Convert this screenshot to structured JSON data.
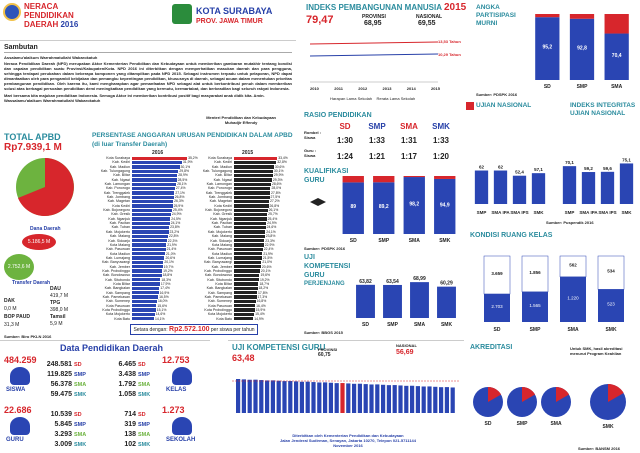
{
  "header": {
    "title_l1": "NERACA",
    "title_l2": "PENDIDIKAN",
    "title_l3": "DAERAH",
    "year": "2016",
    "city": "KOTA SURABAYA",
    "prov": "PROV. JAWA TIMUR"
  },
  "sambutan": {
    "heading": "Sambutan",
    "greeting": "Assalamu'alaikum Warrahmatullahi Wabarokatuh",
    "p1": "Neraca Pendidikan Daerah (NPD) merupakan Aktor Kementerian Pendidikan dan Kebudayaan untuk memberikan gambaran mutakhir tentang kondisi dan capaian pendidikan suatu Provinsi/Kabupaten/Kota. NPD 2016 ini diterbitkan dengan memperhatikan masukan daerah dan para pengguna, sehingga terdapat perubahan dalam beberapa komponen yang ditampilkan pada NPD 2015. Sebagai instrumen terpadu untuk pelaporan, NPD dapat dimanfaatkan oleh para pengambil kebijakan dan pemangku kepentingan pendidikan, khususnya di daerah, sebagai acuan dalam menentukan prioritas pembangunan pendidikan. Oleh karena itu, kami mengharapkan agar pemanfaatan NPD sebagai alat untuk berkontribusi penuh dalam memberikan solusi atas berbagai persoalan pendidikan demi meningkatkan pendidikan yang bermutu, bermartabat, dan berkeadilan bagi seluruh rakyat Indonesia.",
    "p2": "Mari bersama kita majukan pendidikan Indonesia. Semoga Aktor ini memberikan kontribusi positif bagi masyarakat anak didik kita. Amin. Wassalamu'alaikum Warrahmatullahi Wabarokatuh",
    "sign1": "Menteri Pendidikan dan Kebudayaan",
    "sign2": "Muhadjir Effendy"
  },
  "apbd": {
    "title": "TOTAL APBD",
    "total": "Rp7.939,1 M",
    "dana_daerah": "Dana Daerah",
    "dana_daerah_val": "5.186,5 M",
    "transfer_daerah": "Transfer Daerah",
    "transfer_val": "2.752,6 M",
    "items": [
      {
        "k": "DAU",
        "v": "419,7 M"
      },
      {
        "k": "DAK",
        "v": "0,0 M"
      },
      {
        "k": "TPG",
        "v": "398,0 M"
      },
      {
        "k": "BOP PAUD",
        "v": ""
      },
      {
        "k": "Tamsil",
        "v": "31,3 M"
      },
      {
        "k": "",
        "v": "5,9 M"
      }
    ],
    "source": "Sumber: Biro PKLN 2016"
  },
  "persentase": {
    "title": "PERSENTASE ANGGARAN URUSAN PENDIDIKAN DALAM APBD",
    "subtitle": "(di luar Transfer Daerah)",
    "year_2016": "2016",
    "year_2015": "2015",
    "footer_pre": "Setara dengan:",
    "footer_val": "Rp2.572.100",
    "footer_post": "per siswa per tahun"
  },
  "ipm": {
    "title": "INDEKS PEMBANGUNAN MANUSIA",
    "year": "2015",
    "value": "79,47",
    "prov_label": "PROVINSI",
    "prov_val": "68,95",
    "nas_label": "NASIONAL",
    "nas_val": "69,55",
    "line1": "13,53 Tahun",
    "line2": "10,29 Tahun",
    "years": [
      "2010",
      "2011",
      "2012",
      "2013",
      "2014",
      "2015"
    ],
    "legend1": "Harapan Lama Sekolah",
    "legend2": "Rerata Lama Sekolah"
  },
  "apm": {
    "title": "ANGKA PARTISIPASI MURNI",
    "categories": [
      "SD",
      "SMP",
      "SMA"
    ],
    "source": "Sumber: PDSPK 2016"
  },
  "rasio": {
    "title": "RASIO PENDIDIKAN",
    "rombel": "Rombel : Siswa",
    "guru": "Guru : Siswa",
    "cols": [
      "SD",
      "SMP",
      "SMA",
      "SMK"
    ],
    "rombel_vals": [
      "1:30",
      "1:33",
      "1:31",
      "1:33"
    ],
    "guru_vals": [
      "1:24",
      "1:21",
      "1:17",
      "1:20"
    ]
  },
  "ujian_nasional": {
    "title": "UJIAN NASIONAL",
    "source": "Sumber: Puspendik 2016"
  },
  "integritas": {
    "title": "INDEKS INTEGRITAS UJIAN NASIONAL"
  },
  "kualifikasi": {
    "title_l1": "KUALIFIKASI",
    "title_l2": "GURU",
    "source": "Sumber: PDSPK 2016"
  },
  "ukg": {
    "title_l1": "UJI",
    "title_l2": "KOMPETENSI",
    "title_l3": "GURU",
    "sub": "PERJENJANG",
    "source": "Sumber: BBGS 2015"
  },
  "kondisi": {
    "title": "KONDISI RUANG KELAS"
  },
  "data_pendidikan": {
    "title": "Data Pendidikan Daerah",
    "siswa_total": "484.259",
    "siswa_label": "SISWA",
    "siswa_rows": [
      {
        "v": "248.581",
        "k": "SD"
      },
      {
        "v": "119.825",
        "k": "SMP"
      },
      {
        "v": "56.378",
        "k": "SMA"
      },
      {
        "v": "59.475",
        "k": "SMK"
      }
    ],
    "guru_total": "22.686",
    "guru_label": "GURU",
    "guru_rows": [
      {
        "v": "10.539",
        "k": "SD"
      },
      {
        "v": "5.845",
        "k": "SMP"
      },
      {
        "v": "3.293",
        "k": "SMA"
      },
      {
        "v": "3.009",
        "k": "SMK"
      }
    ],
    "kelas_total": "12.753",
    "kelas_label": "KELAS",
    "kelas_rows": [
      {
        "v": "6.465",
        "k": "SD"
      },
      {
        "v": "3.438",
        "k": "SMP"
      },
      {
        "v": "1.792",
        "k": "SMA"
      },
      {
        "v": "1.058",
        "k": "SMK"
      }
    ],
    "sekolah_total": "1.273",
    "sekolah_label": "SEKOLAH",
    "sekolah_rows": [
      {
        "v": "714",
        "k": "SD"
      },
      {
        "v": "319",
        "k": "SMP"
      },
      {
        "v": "138",
        "k": "SMA"
      },
      {
        "v": "102",
        "k": "SMK"
      }
    ]
  },
  "ukg_main": {
    "title": "UJI KOMPETENSI GURU",
    "value": "63,48",
    "prov_label": "PROVINSI",
    "prov_val": "60,75",
    "nas_label": "NASIONAL",
    "nas_val": "56,69",
    "foot1": "Diterbitkan oleh Kementerian Pendidikan dan Kebudayaan",
    "foot2": "Jalan Jenderal Sudirman, Senayan, Jakarta 10270, Telepon 021-5711144",
    "foot3": "November 2016"
  },
  "akreditasi": {
    "title": "AKREDITASI",
    "note": "Untuk SMK, hasil akreditasi menurut Program Keahlian",
    "source": "Sumber: BANSM 2016",
    "cats": [
      "SD",
      "SMP",
      "SMA",
      "SMK"
    ]
  },
  "colors": {
    "teal": "#2b8c9e",
    "red": "#d7262c",
    "blue": "#2a45b3",
    "green": "#6db33f"
  },
  "chart_data": [
    {
      "type": "bar",
      "title": "ANGKA PARTISIPASI MURNI",
      "categories": [
        "SD",
        "SMP",
        "SMA"
      ],
      "series": [
        {
          "values": [
            95.2,
            92.8,
            70.4
          ]
        }
      ],
      "ylim": [
        0,
        100
      ]
    },
    {
      "type": "bar",
      "title": "KUALIFIKASI GURU",
      "categories": [
        "SD",
        "SMP",
        "SMA",
        "SMK"
      ],
      "series": [
        {
          "values": [
            89.0,
            89.2,
            98.2,
            94.9
          ]
        }
      ],
      "ylim": [
        0,
        100
      ]
    },
    {
      "type": "bar",
      "title": "UJI KOMPETENSI GURU PERJENJANG",
      "categories": [
        "SD",
        "SMP",
        "SMA",
        "SMK"
      ],
      "series": [
        {
          "values": [
            63.82,
            63.54,
            68.99,
            60.29
          ]
        }
      ],
      "ylim": [
        0,
        100
      ]
    },
    {
      "type": "bar",
      "title": "UJIAN NASIONAL",
      "categories": [
        "SMP",
        "SMA IPA",
        "SMA IPS",
        "SMK"
      ],
      "series": [
        {
          "values": [
            62.0,
            62.0,
            52.4,
            57.1
          ]
        }
      ],
      "ylim": [
        0,
        100
      ]
    },
    {
      "type": "bar",
      "title": "INDEKS INTEGRITAS UJIAN NASIONAL",
      "categories": [
        "SMP",
        "SMA IPA",
        "SMA IPS",
        "SMK"
      ],
      "series": [
        {
          "values": [
            70.1,
            59.2,
            59.6,
            75.1
          ]
        }
      ],
      "ylim": [
        0,
        100
      ]
    },
    {
      "type": "bar",
      "title": "KONDISI RUANG KELAS",
      "categories": [
        "SD",
        "SMP",
        "SMA",
        "SMK"
      ],
      "series": [
        {
          "values": [
            2703,
            1565,
            1220,
            523
          ]
        },
        {
          "values": [
            3659,
            1856,
            562,
            534
          ]
        }
      ]
    }
  ],
  "persentase_rows": [
    {
      "name": "Kota Surabaya",
      "v2016": "35,2%",
      "w16": 0.95,
      "v2015": "33,4%",
      "w15": 0.9
    },
    {
      "name": "Kab. Kediri",
      "v2016": "31,9%",
      "w16": 0.86,
      "v2015": "32,8%",
      "w15": 0.88
    },
    {
      "name": "Kab. Madiun",
      "v2016": "30,1%",
      "w16": 0.82,
      "v2015": "30,6%",
      "w15": 0.83
    },
    {
      "name": "Kab. Tulungagung",
      "v2016": "29,8%",
      "w16": 0.8,
      "v2015": "30,1%",
      "w15": 0.81
    },
    {
      "name": "Kab. Blitar",
      "v2016": "28,9%",
      "w16": 0.78,
      "v2015": "29,9%",
      "w15": 0.81
    },
    {
      "name": "Kab. Ngawi",
      "v2016": "28,5%",
      "w16": 0.77,
      "v2015": "29,3%",
      "w15": 0.79
    },
    {
      "name": "Kab. Lamongan",
      "v2016": "28,1%",
      "w16": 0.76,
      "v2015": "28,6%",
      "w15": 0.77
    },
    {
      "name": "Kab. Ponorogo",
      "v2016": "27,4%",
      "w16": 0.74,
      "v2015": "28,0%",
      "w15": 0.76
    },
    {
      "name": "Kab. Trenggalek",
      "v2016": "27,1%",
      "w16": 0.73,
      "v2015": "27,8%",
      "w15": 0.75
    },
    {
      "name": "Kab. Jombang",
      "v2016": "26,8%",
      "w16": 0.72,
      "v2015": "27,5%",
      "w15": 0.74
    },
    {
      "name": "Kab. Magetan",
      "v2016": "26,3%",
      "w16": 0.71,
      "v2015": "27,2%",
      "w15": 0.73
    },
    {
      "name": "Kota Kediri",
      "v2016": "25,9%",
      "w16": 0.7,
      "v2015": "26,8%",
      "w15": 0.72
    },
    {
      "name": "Kab. Bojonegoro",
      "v2016": "25,4%",
      "w16": 0.69,
      "v2015": "26,1%",
      "w15": 0.7
    },
    {
      "name": "Kab. Gresik",
      "v2016": "24,9%",
      "w16": 0.67,
      "v2015": "25,7%",
      "w15": 0.69
    },
    {
      "name": "Kab. Nganjuk",
      "v2016": "24,5%",
      "w16": 0.66,
      "v2015": "25,4%",
      "w15": 0.68
    },
    {
      "name": "Kab. Pacitan",
      "v2016": "24,1%",
      "w16": 0.65,
      "v2015": "24,9%",
      "w15": 0.67
    },
    {
      "name": "Kab. Tuban",
      "v2016": "23,8%",
      "w16": 0.64,
      "v2015": "24,6%",
      "w15": 0.66
    },
    {
      "name": "Kab. Mojokerto",
      "v2016": "23,2%",
      "w16": 0.63,
      "v2015": "24,1%",
      "w15": 0.65
    },
    {
      "name": "Kab. Malang",
      "v2016": "22,8%",
      "w16": 0.62,
      "v2015": "23,8%",
      "w15": 0.64
    },
    {
      "name": "Kab. Sidoarjo",
      "v2016": "22,3%",
      "w16": 0.6,
      "v2015": "23,3%",
      "w15": 0.63
    },
    {
      "name": "Kota Malang",
      "v2016": "21,9%",
      "w16": 0.59,
      "v2015": "22,9%",
      "w15": 0.62
    },
    {
      "name": "Kab. Pasuruan",
      "v2016": "21,4%",
      "w16": 0.58,
      "v2015": "22,4%",
      "w15": 0.6
    },
    {
      "name": "Kota Madiun",
      "v2016": "21,0%",
      "w16": 0.57,
      "v2015": "21,9%",
      "w15": 0.59
    },
    {
      "name": "Kab. Lumajang",
      "v2016": "20,6%",
      "w16": 0.56,
      "v2015": "21,5%",
      "w15": 0.58
    },
    {
      "name": "Kab. Banyuwangi",
      "v2016": "20,1%",
      "w16": 0.54,
      "v2015": "21,0%",
      "w15": 0.57
    },
    {
      "name": "Kab. Jember",
      "v2016": "19,7%",
      "w16": 0.53,
      "v2015": "20,6%",
      "w15": 0.56
    },
    {
      "name": "Kab. Probolinggo",
      "v2016": "19,2%",
      "w16": 0.52,
      "v2015": "20,1%",
      "w15": 0.54
    },
    {
      "name": "Kab. Bondowoso",
      "v2016": "18,8%",
      "w16": 0.51,
      "v2015": "19,6%",
      "w15": 0.53
    },
    {
      "name": "Kab. Situbondo",
      "v2016": "18,3%",
      "w16": 0.49,
      "v2015": "19,2%",
      "w15": 0.52
    },
    {
      "name": "Kota Blitar",
      "v2016": "17,9%",
      "w16": 0.48,
      "v2015": "18,7%",
      "w15": 0.51
    },
    {
      "name": "Kab. Bangkalan",
      "v2016": "17,4%",
      "w16": 0.47,
      "v2015": "18,2%",
      "w15": 0.49
    },
    {
      "name": "Kab. Sampang",
      "v2016": "16,9%",
      "w16": 0.46,
      "v2015": "17,8%",
      "w15": 0.48
    },
    {
      "name": "Kab. Pamekasan",
      "v2016": "16,5%",
      "w16": 0.45,
      "v2015": "17,3%",
      "w15": 0.47
    },
    {
      "name": "Kab. Sumenep",
      "v2016": "16,0%",
      "w16": 0.43,
      "v2015": "16,8%",
      "w15": 0.45
    },
    {
      "name": "Kota Pasuruan",
      "v2016": "15,6%",
      "w16": 0.42,
      "v2015": "16,4%",
      "w15": 0.44
    },
    {
      "name": "Kota Probolinggo",
      "v2016": "15,1%",
      "w16": 0.41,
      "v2015": "15,9%",
      "w15": 0.43
    },
    {
      "name": "Kota Mojokerto",
      "v2016": "14,6%",
      "w16": 0.39,
      "v2015": "15,4%",
      "w15": 0.42
    },
    {
      "name": "Kota Batu",
      "v2016": "14,1%",
      "w16": 0.38,
      "v2015": "14,9%",
      "w15": 0.4
    }
  ]
}
